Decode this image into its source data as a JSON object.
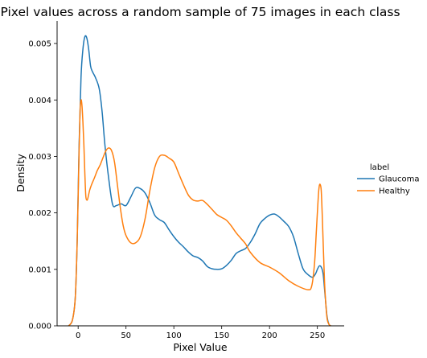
{
  "chart_data": {
    "type": "line",
    "title": "Pixel values across a random sample of 75 images in each class",
    "xlabel": "Pixel Value",
    "ylabel": "Density",
    "xlim": [
      -22,
      278
    ],
    "ylim": [
      0,
      0.0054
    ],
    "xticks": [
      0,
      50,
      100,
      150,
      200,
      250
    ],
    "xtick_labels": [
      "0",
      "50",
      "100",
      "150",
      "200",
      "250"
    ],
    "yticks": [
      0,
      0.001,
      0.002,
      0.003,
      0.004,
      0.005
    ],
    "ytick_labels": [
      "0.000",
      "0.001",
      "0.002",
      "0.003",
      "0.004",
      "0.005"
    ],
    "legend": {
      "title": "label",
      "position": "right",
      "entries": [
        "Glaucoma",
        "Healthy"
      ]
    },
    "series": [
      {
        "name": "Glaucoma",
        "color": "#1f77b4",
        "x": [
          -10,
          -6,
          -3,
          -1,
          1,
          3,
          5,
          7,
          9,
          11,
          13,
          15,
          18,
          22,
          25,
          28,
          32,
          36,
          40,
          45,
          50,
          55,
          60,
          65,
          70,
          75,
          80,
          85,
          90,
          95,
          100,
          105,
          110,
          115,
          120,
          125,
          130,
          135,
          140,
          145,
          150,
          155,
          160,
          165,
          170,
          175,
          180,
          185,
          190,
          195,
          200,
          205,
          210,
          215,
          220,
          225,
          230,
          235,
          240,
          245,
          248,
          250,
          252,
          254,
          256,
          258,
          260,
          262,
          264
        ],
        "y": [
          0.0,
          0.0001,
          0.0005,
          0.0015,
          0.0032,
          0.0044,
          0.0049,
          0.00512,
          0.0051,
          0.0049,
          0.0046,
          0.0045,
          0.0044,
          0.0042,
          0.0038,
          0.0032,
          0.0026,
          0.00215,
          0.00213,
          0.00216,
          0.00213,
          0.00228,
          0.00244,
          0.00243,
          0.00235,
          0.00218,
          0.00196,
          0.00188,
          0.00183,
          0.0017,
          0.00158,
          0.00148,
          0.0014,
          0.00131,
          0.00124,
          0.00121,
          0.00115,
          0.00105,
          0.00101,
          0.001,
          0.00101,
          0.00107,
          0.00116,
          0.00128,
          0.00133,
          0.00137,
          0.00148,
          0.00163,
          0.00181,
          0.0019,
          0.00196,
          0.00198,
          0.00193,
          0.00185,
          0.00176,
          0.00158,
          0.00128,
          0.00101,
          0.00091,
          0.00086,
          0.00092,
          0.001,
          0.00106,
          0.00104,
          0.00092,
          0.00055,
          0.00018,
          3e-05,
          0.0
        ]
      },
      {
        "name": "Healthy",
        "color": "#ff7f0e",
        "x": [
          -10,
          -6,
          -3,
          -1,
          1,
          2,
          3,
          4,
          5,
          6,
          7,
          8,
          9,
          10,
          12,
          14,
          17,
          20,
          23,
          26,
          29,
          32,
          35,
          38,
          41,
          44,
          47,
          50,
          55,
          60,
          65,
          70,
          75,
          80,
          85,
          90,
          95,
          100,
          105,
          110,
          115,
          120,
          125,
          130,
          135,
          140,
          145,
          150,
          155,
          160,
          165,
          170,
          175,
          180,
          190,
          200,
          210,
          220,
          230,
          240,
          244,
          247,
          249,
          251,
          252,
          253,
          254,
          255,
          256,
          257,
          258,
          260,
          262,
          264
        ],
        "y": [
          0.0,
          0.0001,
          0.0005,
          0.0015,
          0.0031,
          0.0038,
          0.004,
          0.0039,
          0.0036,
          0.0032,
          0.0027,
          0.0023,
          0.00223,
          0.00225,
          0.0024,
          0.0025,
          0.00262,
          0.00275,
          0.00285,
          0.00298,
          0.0031,
          0.00315,
          0.0031,
          0.0029,
          0.0025,
          0.0021,
          0.00178,
          0.0016,
          0.00147,
          0.00147,
          0.00158,
          0.0019,
          0.0024,
          0.0028,
          0.003,
          0.00302,
          0.00297,
          0.0029,
          0.0027,
          0.0025,
          0.00232,
          0.00223,
          0.00221,
          0.00222,
          0.00215,
          0.00206,
          0.00197,
          0.00192,
          0.00187,
          0.00177,
          0.00165,
          0.00155,
          0.00145,
          0.0013,
          0.00112,
          0.00104,
          0.00094,
          0.0008,
          0.0007,
          0.00064,
          0.0007,
          0.0011,
          0.0017,
          0.0023,
          0.00248,
          0.0025,
          0.0024,
          0.002,
          0.0015,
          0.001,
          0.0006,
          0.00015,
          3e-05,
          0.0
        ]
      }
    ]
  }
}
